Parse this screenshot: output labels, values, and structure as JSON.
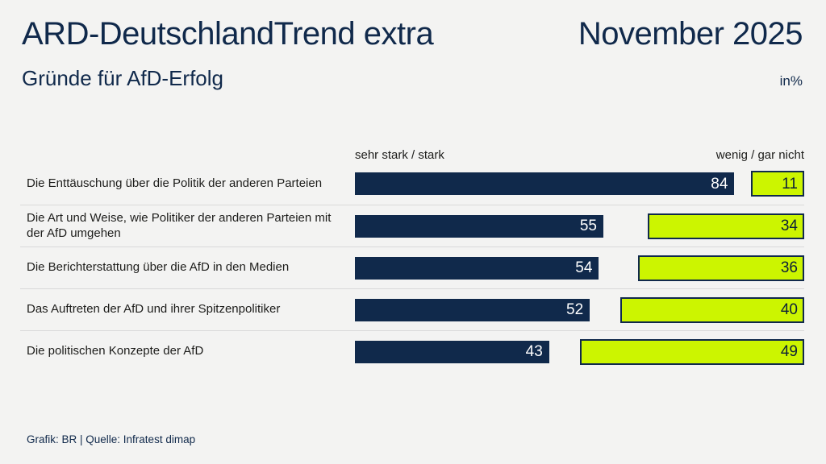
{
  "header": {
    "title": "ARD-DeutschlandTrend extra",
    "period": "November 2025",
    "subtitle": "Gründe für AfD-Erfolg",
    "unit": "in%"
  },
  "chart_data": {
    "type": "bar",
    "orientation": "horizontal",
    "title": "ARD-DeutschlandTrend extra – Gründe für AfD-Erfolg",
    "subtitle_period": "November 2025",
    "value_unit": "percent",
    "xlim": [
      0,
      100
    ],
    "grid": false,
    "legend_position": "column-headers-above-bars",
    "categories": [
      "Die Enttäuschung über die Politik der anderen Parteien",
      "Die Art und Weise, wie Politiker der anderen Parteien mit der AfD umgehen",
      "Die Berichterstattung über die AfD in den Medien",
      "Das Auftreten der AfD und ihrer Spitzenpolitiker",
      "Die politischen Konzepte der AfD"
    ],
    "series": [
      {
        "name": "sehr stark / stark",
        "values": [
          84,
          55,
          54,
          52,
          43
        ],
        "color": "#10294b",
        "value_text_color": "#ffffff",
        "alignment": "left"
      },
      {
        "name": "wenig / gar nicht",
        "values": [
          11,
          34,
          36,
          40,
          49
        ],
        "color": "#ccf500",
        "border_color": "#10294b",
        "value_text_color": "#0d2038",
        "alignment": "right"
      }
    ]
  },
  "footer": {
    "credit": "Grafik: BR | Quelle: Infratest dimap"
  },
  "colors": {
    "background": "#f3f3f2",
    "navy": "#10294b",
    "green": "#ccf500",
    "label_text": "#1d1d1b",
    "separator": "#d9d9d9"
  }
}
